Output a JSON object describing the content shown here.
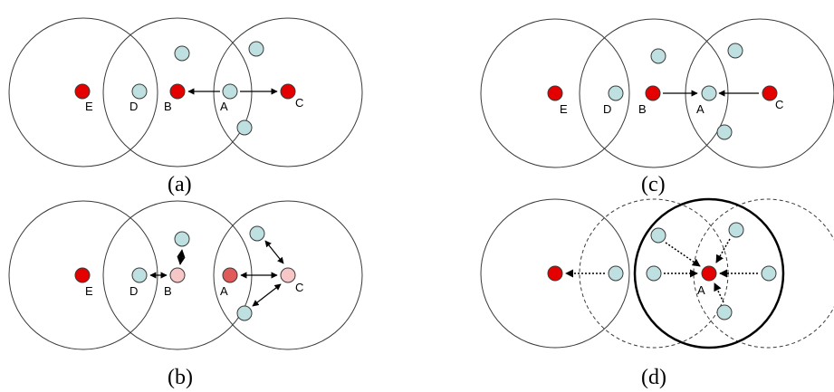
{
  "colors": {
    "node_red": "#e50000",
    "node_teal": "#bfe0e0",
    "node_pink": "#f7c7c7",
    "node_darkpink": "#e05a5a"
  },
  "panels": {
    "a": {
      "caption": "(a)",
      "labels": {
        "E": "E",
        "D": "D",
        "B": "B",
        "A": "A",
        "C": "C"
      }
    },
    "b": {
      "caption": "(b)",
      "labels": {
        "E": "E",
        "D": "D",
        "B": "B",
        "A": "A",
        "C": "C"
      }
    },
    "c": {
      "caption": "(c)",
      "labels": {
        "E": "E",
        "D": "D",
        "B": "B",
        "A": "A",
        "C": "C"
      }
    },
    "d": {
      "caption": "(d)",
      "labels": {
        "A": "A"
      }
    }
  }
}
